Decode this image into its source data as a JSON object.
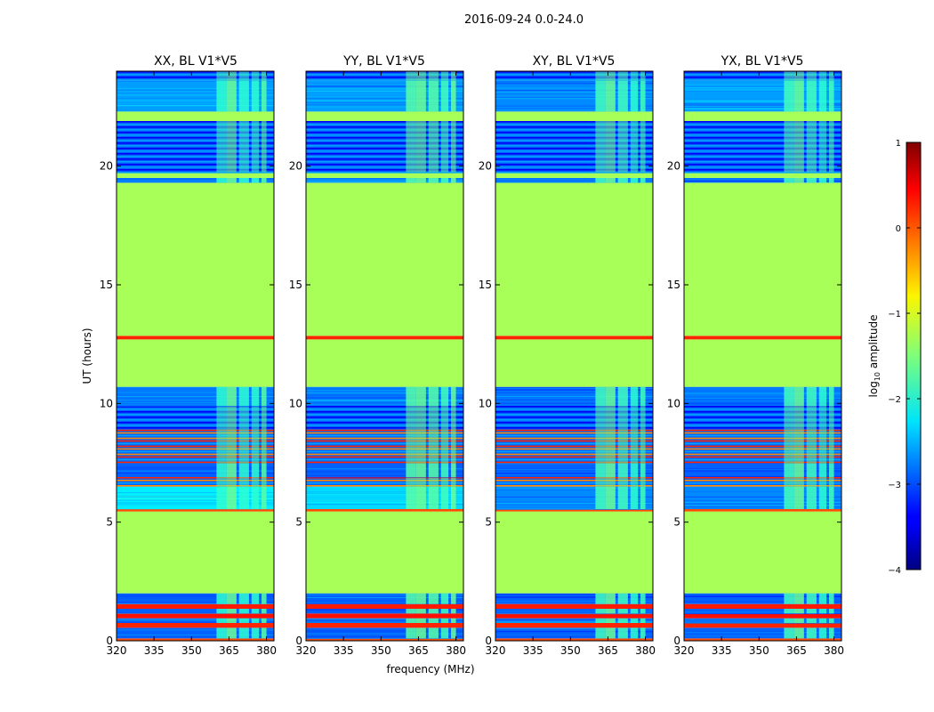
{
  "figure": {
    "suptitle": "2016-09-24 0.0-24.0",
    "xlabel": "frequency (MHz)",
    "ylabel": "UT (hours)"
  },
  "colorbar": {
    "label_base": "log",
    "label_sub": "10",
    "label_rest": " amplitude",
    "range": [
      -4,
      1
    ],
    "ticks": [
      -4,
      -3,
      -2,
      -1,
      0,
      1
    ],
    "tick_labels": [
      "−4",
      "−3",
      "−2",
      "−1",
      "0",
      "1"
    ],
    "colormap": "jet"
  },
  "chart_data": [
    {
      "type": "heatmap",
      "title": "XX, BL V1*V5",
      "xlabel": "frequency (MHz)",
      "ylabel": "UT (hours)",
      "xlim": [
        320,
        383
      ],
      "ylim": [
        0,
        24
      ],
      "xticks": [
        320,
        335,
        350,
        365,
        380
      ],
      "yticks": [
        0,
        5,
        10,
        15,
        20
      ],
      "zlim": [
        -4,
        1
      ],
      "bright_channels": [
        [
          360,
          364,
          -1.5
        ],
        [
          364,
          368,
          -1.2
        ],
        [
          369,
          373,
          -1.5
        ],
        [
          374,
          377,
          -1.5
        ],
        [
          378,
          380,
          -1.3
        ]
      ],
      "time_bands": [
        {
          "t0": 0.0,
          "t1": 0.1,
          "type": "line",
          "v": 0.0
        },
        {
          "t0": 0.1,
          "t1": 0.55,
          "type": "noise",
          "v": -2.9
        },
        {
          "t0": 0.55,
          "t1": 0.75,
          "type": "solid",
          "v": 0.2
        },
        {
          "t0": 0.75,
          "t1": 0.95,
          "type": "noise",
          "v": -2.8
        },
        {
          "t0": 0.95,
          "t1": 1.15,
          "type": "solid",
          "v": 0.3
        },
        {
          "t0": 1.15,
          "t1": 1.35,
          "type": "noise",
          "v": -2.9
        },
        {
          "t0": 1.35,
          "t1": 1.55,
          "type": "solid",
          "v": 0.25
        },
        {
          "t0": 1.55,
          "t1": 2.0,
          "type": "noise",
          "v": -2.9
        },
        {
          "t0": 2.0,
          "t1": 5.45,
          "type": "flat",
          "v": -1.3
        },
        {
          "t0": 5.45,
          "t1": 5.55,
          "type": "line",
          "v": 0.0
        },
        {
          "t0": 5.55,
          "t1": 6.5,
          "type": "noise",
          "v": -2.2
        },
        {
          "t0": 6.5,
          "t1": 6.9,
          "type": "lines",
          "v": 0.2
        },
        {
          "t0": 6.9,
          "t1": 7.5,
          "type": "noise",
          "v": -2.9
        },
        {
          "t0": 7.5,
          "t1": 8.9,
          "type": "lines",
          "v": 0.2
        },
        {
          "t0": 8.9,
          "t1": 9.9,
          "type": "lines",
          "v": -2.8
        },
        {
          "t0": 9.9,
          "t1": 10.7,
          "type": "noise",
          "v": -2.8
        },
        {
          "t0": 10.7,
          "t1": 12.7,
          "type": "flat",
          "v": -1.3
        },
        {
          "t0": 12.7,
          "t1": 12.85,
          "type": "line",
          "v": 0.2
        },
        {
          "t0": 12.85,
          "t1": 19.3,
          "type": "flat",
          "v": -1.3
        },
        {
          "t0": 19.3,
          "t1": 19.5,
          "type": "noise",
          "v": -2.8
        },
        {
          "t0": 19.5,
          "t1": 19.75,
          "type": "flat",
          "v": -1.3
        },
        {
          "t0": 19.75,
          "t1": 21.9,
          "type": "lines",
          "v": -2.8
        },
        {
          "t0": 21.9,
          "t1": 22.3,
          "type": "flat",
          "v": -1.3
        },
        {
          "t0": 22.3,
          "t1": 23.6,
          "type": "noise",
          "v": -2.6
        },
        {
          "t0": 23.6,
          "t1": 24.0,
          "type": "lines",
          "v": -2.5
        }
      ]
    },
    {
      "type": "heatmap",
      "title": "YY, BL V1*V5",
      "xlabel": "frequency (MHz)",
      "ylabel": "",
      "xlim": [
        320,
        383
      ],
      "ylim": [
        0,
        24
      ],
      "xticks": [
        320,
        335,
        350,
        365,
        380
      ],
      "yticks": [
        0,
        5,
        10,
        15,
        20
      ],
      "zlim": [
        -4,
        1
      ],
      "bright_channels": [
        [
          360,
          364,
          -1.3
        ],
        [
          364,
          368,
          -1.2
        ],
        [
          369,
          373,
          -1.3
        ],
        [
          374,
          377,
          -1.4
        ],
        [
          378,
          380,
          -1.2
        ]
      ],
      "time_bands": [
        {
          "t0": 0.0,
          "t1": 0.1,
          "type": "line",
          "v": 0.0
        },
        {
          "t0": 0.1,
          "t1": 0.55,
          "type": "noise",
          "v": -2.9
        },
        {
          "t0": 0.55,
          "t1": 0.75,
          "type": "solid",
          "v": 0.2
        },
        {
          "t0": 0.75,
          "t1": 0.95,
          "type": "noise",
          "v": -2.8
        },
        {
          "t0": 0.95,
          "t1": 1.15,
          "type": "solid",
          "v": 0.3
        },
        {
          "t0": 1.15,
          "t1": 1.35,
          "type": "noise",
          "v": -2.9
        },
        {
          "t0": 1.35,
          "t1": 1.55,
          "type": "solid",
          "v": 0.25
        },
        {
          "t0": 1.55,
          "t1": 2.0,
          "type": "noise",
          "v": -2.9
        },
        {
          "t0": 2.0,
          "t1": 5.45,
          "type": "flat",
          "v": -1.3
        },
        {
          "t0": 5.45,
          "t1": 5.55,
          "type": "line",
          "v": 0.0
        },
        {
          "t0": 5.55,
          "t1": 6.5,
          "type": "noise",
          "v": -2.3
        },
        {
          "t0": 6.5,
          "t1": 6.9,
          "type": "lines",
          "v": 0.2
        },
        {
          "t0": 6.9,
          "t1": 7.5,
          "type": "noise",
          "v": -2.9
        },
        {
          "t0": 7.5,
          "t1": 8.9,
          "type": "lines",
          "v": 0.2
        },
        {
          "t0": 8.9,
          "t1": 9.9,
          "type": "lines",
          "v": -2.8
        },
        {
          "t0": 9.9,
          "t1": 10.7,
          "type": "noise",
          "v": -2.8
        },
        {
          "t0": 10.7,
          "t1": 12.7,
          "type": "flat",
          "v": -1.3
        },
        {
          "t0": 12.7,
          "t1": 12.85,
          "type": "line",
          "v": 0.2
        },
        {
          "t0": 12.85,
          "t1": 19.3,
          "type": "flat",
          "v": -1.3
        },
        {
          "t0": 19.3,
          "t1": 19.5,
          "type": "noise",
          "v": -2.8
        },
        {
          "t0": 19.5,
          "t1": 19.75,
          "type": "flat",
          "v": -1.3
        },
        {
          "t0": 19.75,
          "t1": 21.9,
          "type": "lines",
          "v": -2.8
        },
        {
          "t0": 21.9,
          "t1": 22.3,
          "type": "flat",
          "v": -1.3
        },
        {
          "t0": 22.3,
          "t1": 23.6,
          "type": "noise",
          "v": -2.6
        },
        {
          "t0": 23.6,
          "t1": 24.0,
          "type": "lines",
          "v": -2.5
        }
      ]
    },
    {
      "type": "heatmap",
      "title": "XY, BL V1*V5",
      "xlabel": "",
      "ylabel": "",
      "xlim": [
        320,
        383
      ],
      "ylim": [
        0,
        24
      ],
      "xticks": [
        320,
        335,
        350,
        365,
        380
      ],
      "yticks": [
        0,
        5,
        10,
        15,
        20
      ],
      "zlim": [
        -4,
        1
      ],
      "bright_channels": [
        [
          360,
          364,
          -1.4
        ],
        [
          364,
          368,
          -1.2
        ],
        [
          369,
          373,
          -1.4
        ],
        [
          374,
          377,
          -1.5
        ],
        [
          378,
          380,
          -1.4
        ]
      ],
      "time_bands": [
        {
          "t0": 0.0,
          "t1": 0.1,
          "type": "line",
          "v": 0.0
        },
        {
          "t0": 0.1,
          "t1": 0.55,
          "type": "noise",
          "v": -2.9
        },
        {
          "t0": 0.55,
          "t1": 0.75,
          "type": "solid",
          "v": 0.2
        },
        {
          "t0": 0.75,
          "t1": 0.95,
          "type": "noise",
          "v": -2.8
        },
        {
          "t0": 0.95,
          "t1": 1.15,
          "type": "solid",
          "v": 0.3
        },
        {
          "t0": 1.15,
          "t1": 1.35,
          "type": "noise",
          "v": -2.9
        },
        {
          "t0": 1.35,
          "t1": 1.55,
          "type": "solid",
          "v": 0.25
        },
        {
          "t0": 1.55,
          "t1": 2.0,
          "type": "noise",
          "v": -2.9
        },
        {
          "t0": 2.0,
          "t1": 5.45,
          "type": "flat",
          "v": -1.3
        },
        {
          "t0": 5.45,
          "t1": 5.55,
          "type": "line",
          "v": 0.0
        },
        {
          "t0": 5.55,
          "t1": 6.5,
          "type": "noise",
          "v": -2.7
        },
        {
          "t0": 6.5,
          "t1": 6.9,
          "type": "lines",
          "v": 0.2
        },
        {
          "t0": 6.9,
          "t1": 7.5,
          "type": "noise",
          "v": -2.9
        },
        {
          "t0": 7.5,
          "t1": 8.9,
          "type": "lines",
          "v": 0.2
        },
        {
          "t0": 8.9,
          "t1": 9.9,
          "type": "lines",
          "v": -2.8
        },
        {
          "t0": 9.9,
          "t1": 10.7,
          "type": "noise",
          "v": -2.8
        },
        {
          "t0": 10.7,
          "t1": 12.7,
          "type": "flat",
          "v": -1.3
        },
        {
          "t0": 12.7,
          "t1": 12.85,
          "type": "line",
          "v": 0.2
        },
        {
          "t0": 12.85,
          "t1": 19.3,
          "type": "flat",
          "v": -1.3
        },
        {
          "t0": 19.3,
          "t1": 19.5,
          "type": "noise",
          "v": -2.8
        },
        {
          "t0": 19.5,
          "t1": 19.75,
          "type": "flat",
          "v": -1.3
        },
        {
          "t0": 19.75,
          "t1": 21.9,
          "type": "lines",
          "v": -2.8
        },
        {
          "t0": 21.9,
          "t1": 22.3,
          "type": "flat",
          "v": -1.3
        },
        {
          "t0": 22.3,
          "t1": 23.6,
          "type": "noise",
          "v": -2.7
        },
        {
          "t0": 23.6,
          "t1": 24.0,
          "type": "lines",
          "v": -2.6
        }
      ]
    },
    {
      "type": "heatmap",
      "title": "YX, BL V1*V5",
      "xlabel": "",
      "ylabel": "",
      "xlim": [
        320,
        383
      ],
      "ylim": [
        0,
        24
      ],
      "xticks": [
        320,
        335,
        350,
        365,
        380
      ],
      "yticks": [
        0,
        5,
        10,
        15,
        20
      ],
      "zlim": [
        -4,
        1
      ],
      "bright_channels": [
        [
          360,
          364,
          -1.4
        ],
        [
          364,
          368,
          -1.2
        ],
        [
          369,
          373,
          -1.4
        ],
        [
          374,
          377,
          -1.5
        ],
        [
          378,
          380,
          -1.4
        ]
      ],
      "time_bands": [
        {
          "t0": 0.0,
          "t1": 0.1,
          "type": "line",
          "v": 0.0
        },
        {
          "t0": 0.1,
          "t1": 0.55,
          "type": "noise",
          "v": -2.9
        },
        {
          "t0": 0.55,
          "t1": 0.75,
          "type": "solid",
          "v": 0.2
        },
        {
          "t0": 0.75,
          "t1": 0.95,
          "type": "noise",
          "v": -2.8
        },
        {
          "t0": 0.95,
          "t1": 1.15,
          "type": "solid",
          "v": 0.3
        },
        {
          "t0": 1.15,
          "t1": 1.35,
          "type": "noise",
          "v": -2.9
        },
        {
          "t0": 1.35,
          "t1": 1.55,
          "type": "solid",
          "v": 0.25
        },
        {
          "t0": 1.55,
          "t1": 2.0,
          "type": "noise",
          "v": -2.9
        },
        {
          "t0": 2.0,
          "t1": 5.45,
          "type": "flat",
          "v": -1.3
        },
        {
          "t0": 5.45,
          "t1": 5.55,
          "type": "line",
          "v": 0.0
        },
        {
          "t0": 5.55,
          "t1": 6.5,
          "type": "noise",
          "v": -2.7
        },
        {
          "t0": 6.5,
          "t1": 6.9,
          "type": "lines",
          "v": 0.2
        },
        {
          "t0": 6.9,
          "t1": 7.5,
          "type": "noise",
          "v": -2.9
        },
        {
          "t0": 7.5,
          "t1": 8.9,
          "type": "lines",
          "v": 0.2
        },
        {
          "t0": 8.9,
          "t1": 9.9,
          "type": "lines",
          "v": -2.8
        },
        {
          "t0": 9.9,
          "t1": 10.7,
          "type": "noise",
          "v": -2.8
        },
        {
          "t0": 10.7,
          "t1": 12.7,
          "type": "flat",
          "v": -1.3
        },
        {
          "t0": 12.7,
          "t1": 12.85,
          "type": "line",
          "v": 0.2
        },
        {
          "t0": 12.85,
          "t1": 19.3,
          "type": "flat",
          "v": -1.3
        },
        {
          "t0": 19.3,
          "t1": 19.5,
          "type": "noise",
          "v": -2.8
        },
        {
          "t0": 19.5,
          "t1": 19.75,
          "type": "flat",
          "v": -1.3
        },
        {
          "t0": 19.75,
          "t1": 21.9,
          "type": "lines",
          "v": -2.8
        },
        {
          "t0": 21.9,
          "t1": 22.3,
          "type": "flat",
          "v": -1.3
        },
        {
          "t0": 22.3,
          "t1": 23.6,
          "type": "noise",
          "v": -2.6
        },
        {
          "t0": 23.6,
          "t1": 24.0,
          "type": "lines",
          "v": -2.5
        }
      ]
    }
  ]
}
